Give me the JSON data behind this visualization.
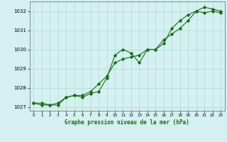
{
  "title": "Graphe pression niveau de la mer (hPa)",
  "bg_color": "#d4f0f0",
  "grid_color": "#aaddcc",
  "line_color": "#1a6b1a",
  "x_values": [
    0,
    1,
    2,
    3,
    4,
    5,
    6,
    7,
    8,
    9,
    10,
    11,
    12,
    13,
    14,
    15,
    16,
    17,
    18,
    19,
    20,
    21,
    22,
    23
  ],
  "line1": [
    1027.2,
    1027.2,
    1027.1,
    1027.1,
    1027.5,
    1027.6,
    1027.5,
    1027.7,
    1027.8,
    1028.5,
    1029.7,
    1030.0,
    1029.8,
    1029.3,
    1030.0,
    1030.0,
    1030.3,
    1031.1,
    1031.5,
    1031.8,
    1032.0,
    1032.2,
    1032.1,
    1032.0
  ],
  "line2": [
    1027.2,
    1027.1,
    1027.1,
    1027.2,
    1027.5,
    1027.6,
    1027.6,
    1027.8,
    1028.2,
    1028.6,
    1029.3,
    1029.5,
    1029.6,
    1029.7,
    1030.0,
    1030.0,
    1030.5,
    1030.8,
    1031.1,
    1031.5,
    1032.0,
    1031.9,
    1032.0,
    1031.9
  ],
  "ylim": [
    1026.8,
    1032.5
  ],
  "yticks": [
    1027,
    1028,
    1029,
    1030,
    1031,
    1032
  ],
  "xlim": [
    -0.5,
    23.5
  ]
}
